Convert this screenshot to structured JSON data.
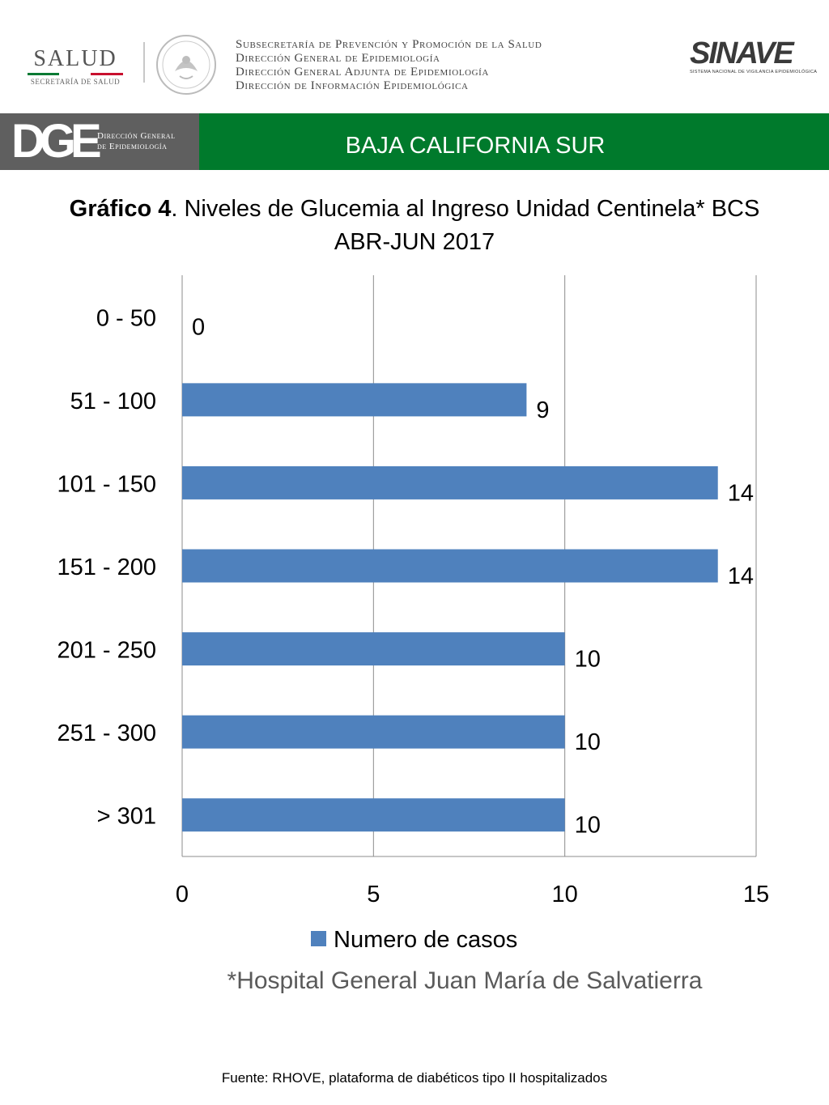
{
  "header": {
    "salud_word": "SALUD",
    "salud_sub": "SECRETARÍA DE SALUD",
    "dept_lines": [
      "Subsecretaría de Prevención y Promoción de la Salud",
      "Dirección General de Epidemiología",
      "Dirección General Adjunta de Epidemiología",
      "Dirección de Información Epidemiológica"
    ],
    "sinave_word": "SINAVE",
    "sinave_sub": "SISTEMA NACIONAL DE VIGILANCIA EPIDEMIOLÓGICA",
    "dge_letters": "DGE",
    "dge_text_line1": "Dirección General",
    "dge_text_line2": "de Epidemiología",
    "region": "BAJA CALIFORNIA SUR",
    "accent_green": "#007a2c"
  },
  "chart_data": {
    "type": "bar",
    "orientation": "horizontal",
    "title_bold": "Gráfico 4",
    "title_rest": ". Niveles de Glucemia al Ingreso Unidad Centinela* BCS",
    "title_line2": "ABR-JUN 2017",
    "categories": [
      "0 - 50",
      "51 - 100",
      "101 - 150",
      "151 - 200",
      "201 - 250",
      "251 - 300",
      "> 301"
    ],
    "series": [
      {
        "name": "Numero de casos",
        "values": [
          0,
          9,
          14,
          14,
          10,
          10,
          10
        ],
        "color": "#4f81bd"
      }
    ],
    "xlim": [
      0,
      15
    ],
    "x_ticks": [
      0,
      5,
      10,
      15
    ],
    "grid": true,
    "legend_position": "bottom"
  },
  "footnote": "*Hospital General Juan María de Salvatierra",
  "source": "Fuente: RHOVE, plataforma de diabéticos tipo II hospitalizados"
}
